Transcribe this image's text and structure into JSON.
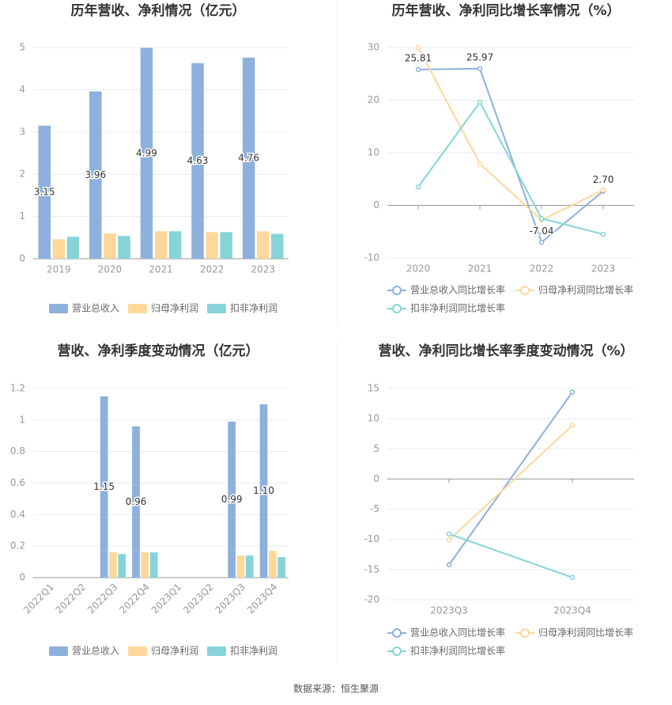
{
  "chart_data": [
    {
      "type": "bar",
      "title": "历年营收、净利情况（亿元）",
      "categories": [
        "2019",
        "2020",
        "2021",
        "2022",
        "2023"
      ],
      "series": [
        {
          "name": "营业总收入",
          "color": "#8eb0dc",
          "values": [
            3.15,
            3.96,
            4.99,
            4.63,
            4.76
          ],
          "value_labels": [
            "3.15",
            "3.96",
            "4.99",
            "4.63",
            "4.76"
          ]
        },
        {
          "name": "归母净利润",
          "color": "#fdd89a",
          "values": [
            0.46,
            0.6,
            0.65,
            0.63,
            0.65
          ]
        },
        {
          "name": "扣非净利润",
          "color": "#86d4d8",
          "values": [
            0.52,
            0.54,
            0.65,
            0.63,
            0.59
          ]
        }
      ],
      "ylim": [
        0,
        5
      ],
      "yticks": [
        0,
        1,
        2,
        3,
        4,
        5
      ],
      "grid": true
    },
    {
      "type": "line",
      "title": "历年营收、净利同比增长率情况（%）",
      "categories": [
        "2020",
        "2021",
        "2022",
        "2023"
      ],
      "series": [
        {
          "name": "营业总收入同比增长率",
          "color": "#8eb0dc",
          "values": [
            25.81,
            25.97,
            -7.04,
            2.7
          ],
          "value_labels": [
            "25.81",
            "25.97",
            "-7.04",
            "2.70"
          ]
        },
        {
          "name": "归母净利润同比增长率",
          "color": "#fdd89a",
          "values": [
            30.0,
            7.9,
            -2.8,
            2.9
          ]
        },
        {
          "name": "扣非净利润同比增长率",
          "color": "#86d4d8",
          "values": [
            3.5,
            19.6,
            -2.5,
            -5.5
          ]
        }
      ],
      "ylim": [
        -10,
        30
      ],
      "yticks": [
        -10,
        0,
        10,
        20,
        30
      ],
      "grid": true
    },
    {
      "type": "bar",
      "title": "营收、净利季度变动情况（亿元）",
      "categories": [
        "2022Q1",
        "2022Q2",
        "2022Q3",
        "2022Q4",
        "2023Q1",
        "2023Q2",
        "2023Q3",
        "2023Q4"
      ],
      "series": [
        {
          "name": "营业总收入",
          "color": "#8eb0dc",
          "values": [
            null,
            null,
            1.15,
            0.96,
            null,
            null,
            0.99,
            1.1
          ],
          "value_labels": [
            null,
            null,
            "1.15",
            "0.96",
            null,
            null,
            "0.99",
            "1.10"
          ]
        },
        {
          "name": "归母净利润",
          "color": "#fdd89a",
          "values": [
            null,
            null,
            0.16,
            0.16,
            null,
            null,
            0.14,
            0.17
          ]
        },
        {
          "name": "扣非净利润",
          "color": "#86d4d8",
          "values": [
            null,
            null,
            0.15,
            0.16,
            null,
            null,
            0.14,
            0.13
          ]
        }
      ],
      "ylim": [
        0,
        1.2
      ],
      "yticks": [
        0,
        0.2,
        0.4,
        0.6,
        0.8,
        1,
        1.2
      ],
      "grid": true
    },
    {
      "type": "line",
      "title": "营收、净利同比增长率季度变动情况（%）",
      "categories": [
        "2023Q3",
        "2023Q4"
      ],
      "series": [
        {
          "name": "营业总收入同比增长率",
          "color": "#8eb0dc",
          "values": [
            -14.2,
            14.4
          ]
        },
        {
          "name": "归母净利润同比增长率",
          "color": "#fdd89a",
          "values": [
            -10.1,
            8.9
          ]
        },
        {
          "name": "扣非净利润同比增长率",
          "color": "#86d4d8",
          "values": [
            -9.1,
            -16.3
          ]
        }
      ],
      "ylim": [
        -20,
        15
      ],
      "yticks": [
        -20,
        -15,
        -10,
        -5,
        0,
        5,
        10,
        15
      ],
      "grid": true
    }
  ],
  "source": "数据来源：恒生聚源"
}
